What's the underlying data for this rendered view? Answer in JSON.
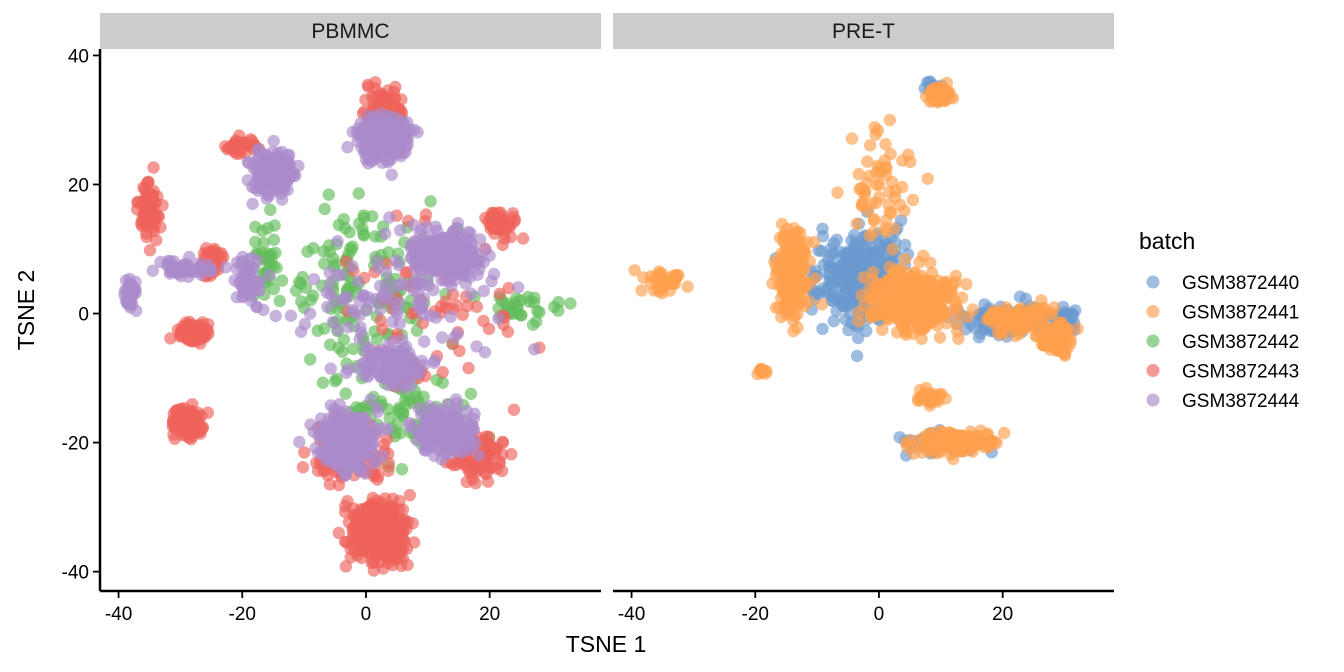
{
  "chart_data": {
    "type": "scatter",
    "xlabel": "TSNE 1",
    "ylabel": "TSNE 2",
    "xlim": [
      -43,
      38
    ],
    "ylim": [
      -43,
      41
    ],
    "x_ticks": [
      -40,
      -20,
      0,
      20
    ],
    "y_ticks": [
      -40,
      -20,
      0,
      20,
      40
    ],
    "grid": false,
    "legend": {
      "title": "batch",
      "position": "right",
      "entries": [
        {
          "name": "GSM3872440",
          "color": "#6b9acf"
        },
        {
          "name": "GSM3872441",
          "color": "#ffa04d"
        },
        {
          "name": "GSM3872442",
          "color": "#62bd5a"
        },
        {
          "name": "GSM3872443",
          "color": "#ee635b"
        },
        {
          "name": "GSM3872444",
          "color": "#ab8acb"
        }
      ]
    },
    "panels": [
      {
        "label": "PBMMC",
        "clusters": [
          {
            "series": "GSM3872443",
            "x": 2,
            "y": -34,
            "sx": 4,
            "sy": 4,
            "n": 420
          },
          {
            "series": "GSM3872443",
            "x": 3,
            "y": 31,
            "sx": 3,
            "sy": 3,
            "n": 150
          },
          {
            "series": "GSM3872443",
            "x": -29,
            "y": -17,
            "sx": 2,
            "sy": 2,
            "n": 160
          },
          {
            "series": "GSM3872443",
            "x": -28,
            "y": -3,
            "sx": 2,
            "sy": 1.4,
            "n": 130
          },
          {
            "series": "GSM3872443",
            "x": -35,
            "y": 16,
            "sx": 1.4,
            "sy": 4,
            "n": 90
          },
          {
            "series": "GSM3872443",
            "x": 22,
            "y": 14,
            "sx": 2,
            "sy": 2,
            "n": 50
          },
          {
            "series": "GSM3872443",
            "x": 18,
            "y": -22,
            "sx": 4,
            "sy": 3,
            "n": 110
          },
          {
            "series": "GSM3872443",
            "x": 7,
            "y": -9,
            "sx": 2,
            "sy": 1.5,
            "n": 40
          },
          {
            "series": "GSM3872443",
            "x": -20,
            "y": 26,
            "sx": 2,
            "sy": 1,
            "n": 40
          },
          {
            "series": "GSM3872443",
            "x": -25,
            "y": 8,
            "sx": 2,
            "sy": 2,
            "n": 35
          },
          {
            "series": "GSM3872443",
            "x": -3,
            "y": -22,
            "sx": 6,
            "sy": 4,
            "n": 90
          },
          {
            "series": "GSM3872443",
            "x": 10,
            "y": 3,
            "sx": 12,
            "sy": 12,
            "n": 70
          },
          {
            "series": "GSM3872442",
            "x": 0,
            "y": 5,
            "sx": 12,
            "sy": 12,
            "n": 140
          },
          {
            "series": "GSM3872442",
            "x": 5,
            "y": -15,
            "sx": 10,
            "sy": 6,
            "n": 80
          },
          {
            "series": "GSM3872442",
            "x": 25,
            "y": 1,
            "sx": 4,
            "sy": 2,
            "n": 30
          },
          {
            "series": "GSM3872442",
            "x": -16,
            "y": 8,
            "sx": 3,
            "sy": 6,
            "n": 40
          },
          {
            "series": "GSM3872444",
            "x": 3,
            "y": 27,
            "sx": 4,
            "sy": 3,
            "n": 220
          },
          {
            "series": "GSM3872444",
            "x": 13,
            "y": 9,
            "sx": 5,
            "sy": 3,
            "n": 340
          },
          {
            "series": "GSM3872444",
            "x": -15,
            "y": 22,
            "sx": 3,
            "sy": 3,
            "n": 170
          },
          {
            "series": "GSM3872444",
            "x": -3,
            "y": -20,
            "sx": 4,
            "sy": 4,
            "n": 280
          },
          {
            "series": "GSM3872444",
            "x": 13,
            "y": -18,
            "sx": 4,
            "sy": 3,
            "n": 210
          },
          {
            "series": "GSM3872444",
            "x": 4,
            "y": -8,
            "sx": 5,
            "sy": 3,
            "n": 110
          },
          {
            "series": "GSM3872444",
            "x": -19,
            "y": 5,
            "sx": 2,
            "sy": 3,
            "n": 60
          },
          {
            "series": "GSM3872444",
            "x": 5,
            "y": 2,
            "sx": 14,
            "sy": 9,
            "n": 120
          },
          {
            "series": "GSM3872444",
            "x": -30,
            "y": 7,
            "sx": 5,
            "sy": 1.2,
            "n": 50
          },
          {
            "series": "GSM3872444",
            "x": -38,
            "y": 3,
            "sx": 1,
            "sy": 2.5,
            "n": 30
          }
        ]
      },
      {
        "label": "PRE-T",
        "clusters": [
          {
            "series": "GSM3872440",
            "x": -3,
            "y": 5,
            "sx": 6,
            "sy": 6,
            "n": 400
          },
          {
            "series": "GSM3872440",
            "x": 20,
            "y": -1,
            "sx": 6,
            "sy": 2,
            "n": 120
          },
          {
            "series": "GSM3872440",
            "x": 10,
            "y": -20,
            "sx": 6,
            "sy": 1.5,
            "n": 60
          },
          {
            "series": "GSM3872440",
            "x": 9,
            "y": 35,
            "sx": 1,
            "sy": 1,
            "n": 15
          },
          {
            "series": "GSM3872440",
            "x": 30,
            "y": -1,
            "sx": 2,
            "sy": 2,
            "n": 50
          },
          {
            "series": "GSM3872441",
            "x": -14,
            "y": 6,
            "sx": 2,
            "sy": 6,
            "n": 240
          },
          {
            "series": "GSM3872441",
            "x": 5,
            "y": 2,
            "sx": 6,
            "sy": 4,
            "n": 420
          },
          {
            "series": "GSM3872441",
            "x": 22,
            "y": -1,
            "sx": 5,
            "sy": 2,
            "n": 120
          },
          {
            "series": "GSM3872441",
            "x": 29,
            "y": -4,
            "sx": 2,
            "sy": 2,
            "n": 80
          },
          {
            "series": "GSM3872441",
            "x": 12,
            "y": -20,
            "sx": 6,
            "sy": 1.5,
            "n": 160
          },
          {
            "series": "GSM3872441",
            "x": 10,
            "y": 34,
            "sx": 1.5,
            "sy": 1.2,
            "n": 70
          },
          {
            "series": "GSM3872441",
            "x": 8,
            "y": -13,
            "sx": 2,
            "sy": 1,
            "n": 40
          },
          {
            "series": "GSM3872441",
            "x": -35,
            "y": 5,
            "sx": 3,
            "sy": 1.8,
            "n": 40
          },
          {
            "series": "GSM3872441",
            "x": 0,
            "y": 20,
            "sx": 5,
            "sy": 8,
            "n": 60
          },
          {
            "series": "GSM3872441",
            "x": -19,
            "y": -9,
            "sx": 1,
            "sy": 0.5,
            "n": 12
          }
        ]
      }
    ]
  }
}
